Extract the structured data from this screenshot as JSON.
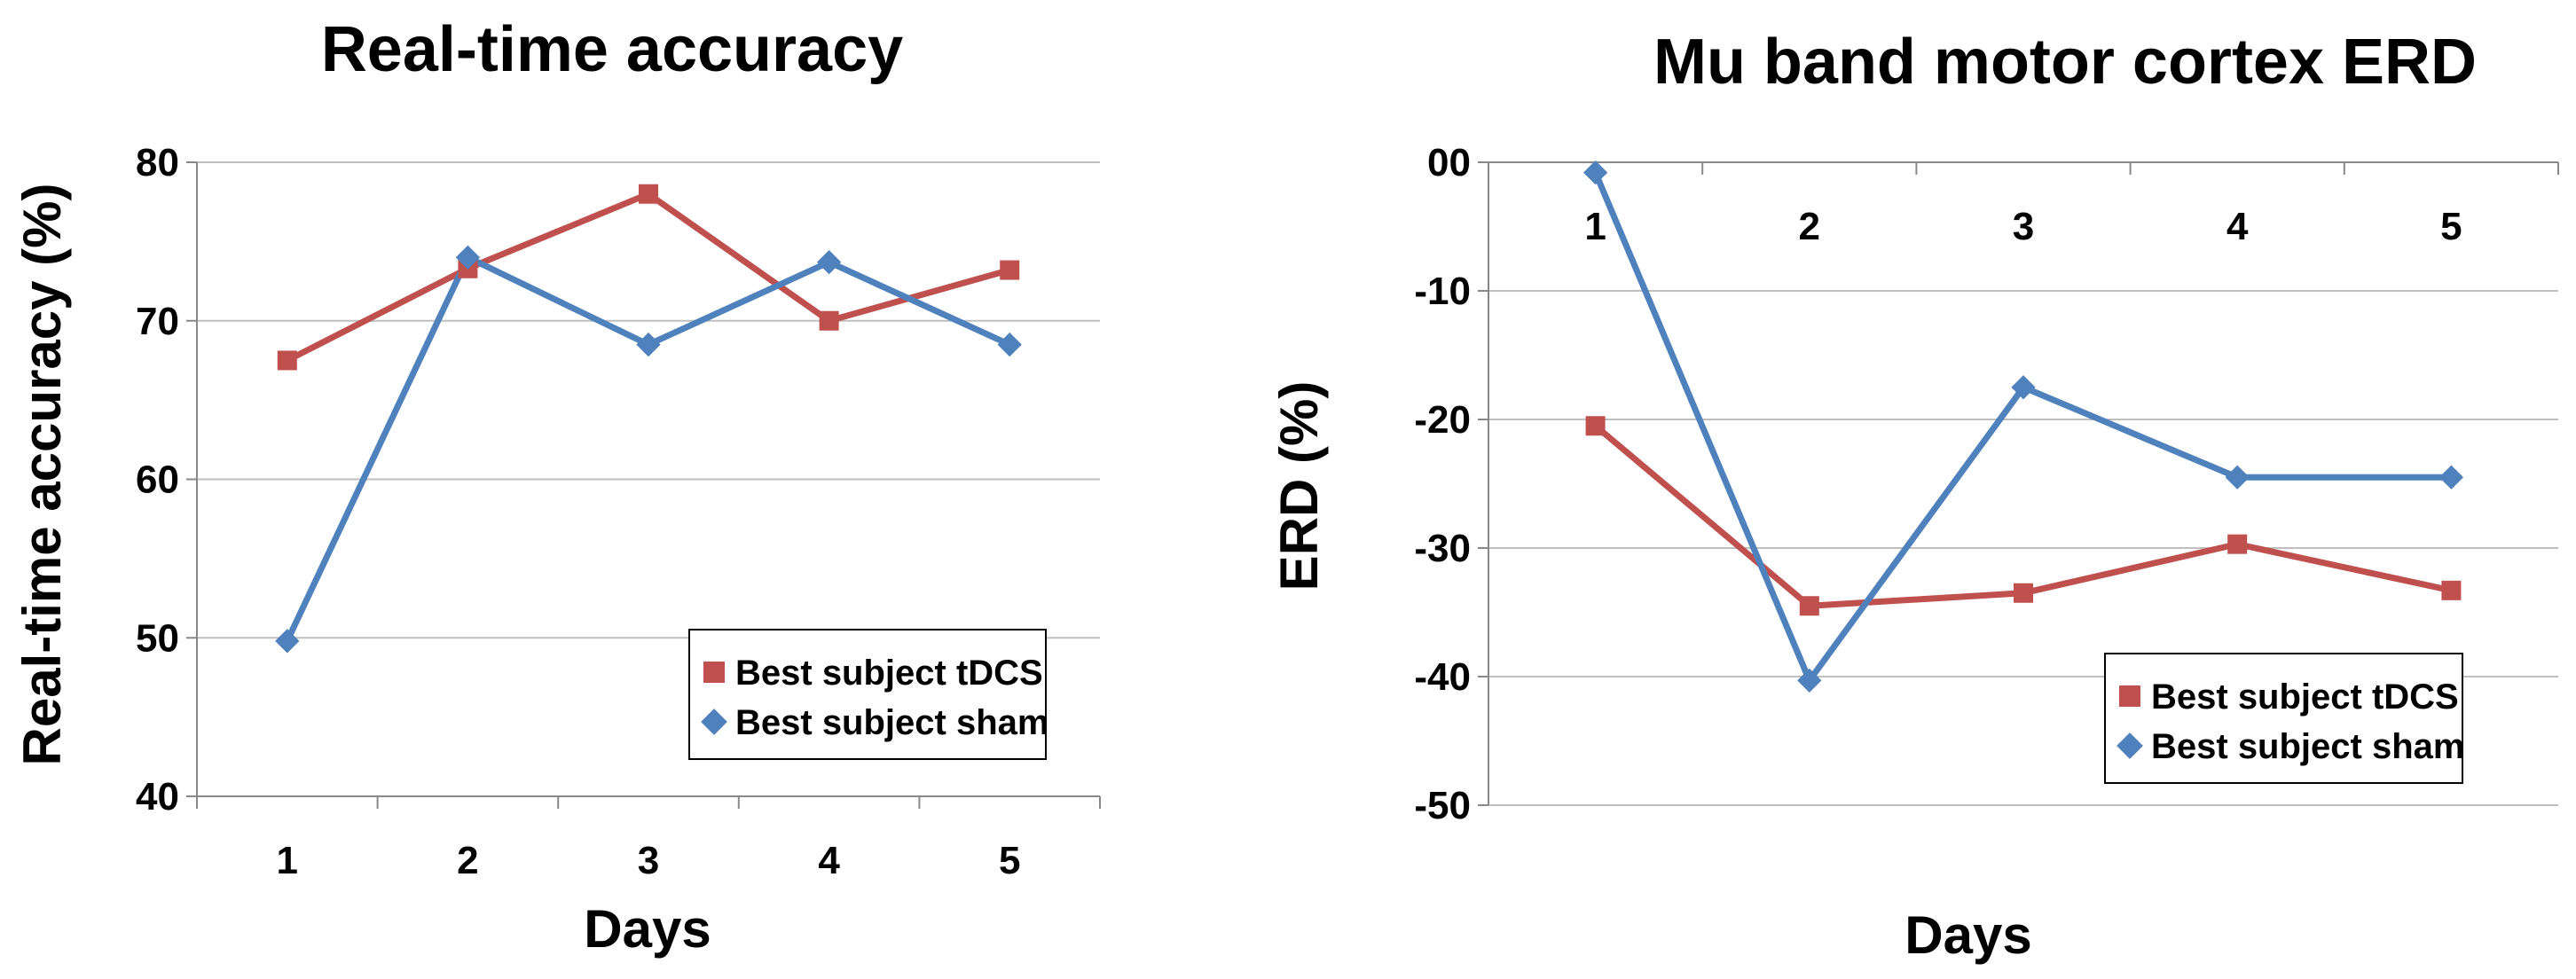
{
  "colors": {
    "tdcs": "#c0504d",
    "sham": "#4f81bd"
  },
  "chart_data": [
    {
      "type": "line",
      "title": "Real-time accuracy",
      "xlabel": "Days",
      "ylabel": "Real-time accuracy (%)",
      "categories": [
        "1",
        "2",
        "3",
        "4",
        "5"
      ],
      "ylim": [
        40,
        80
      ],
      "yticks": [
        "40",
        "50",
        "60",
        "70",
        "80"
      ],
      "grid": true,
      "legend_position": "bottom-right",
      "series": [
        {
          "name": "Best subject tDCS",
          "marker": "square",
          "values": [
            67.5,
            73.3,
            78.0,
            70.0,
            73.2
          ]
        },
        {
          "name": "Best subject sham",
          "marker": "diamond",
          "values": [
            49.8,
            74.0,
            68.5,
            73.7,
            68.5
          ]
        }
      ]
    },
    {
      "type": "line",
      "title": "Mu band motor cortex ERD",
      "xlabel": "Days",
      "ylabel": "ERD (%)",
      "categories": [
        "1",
        "2",
        "3",
        "4",
        "5"
      ],
      "ylim": [
        -50,
        0
      ],
      "yticks": [
        "00",
        "-10",
        "-20",
        "-30",
        "-40",
        "-50"
      ],
      "grid": true,
      "x_axis_at_top": true,
      "legend_position": "bottom-right",
      "series": [
        {
          "name": "Best subject tDCS",
          "marker": "square",
          "values": [
            -20.5,
            -34.5,
            -33.5,
            -29.7,
            -33.3
          ]
        },
        {
          "name": "Best subject sham",
          "marker": "diamond",
          "values": [
            -0.8,
            -40.3,
            -17.5,
            -24.5,
            -24.5
          ]
        }
      ]
    }
  ]
}
